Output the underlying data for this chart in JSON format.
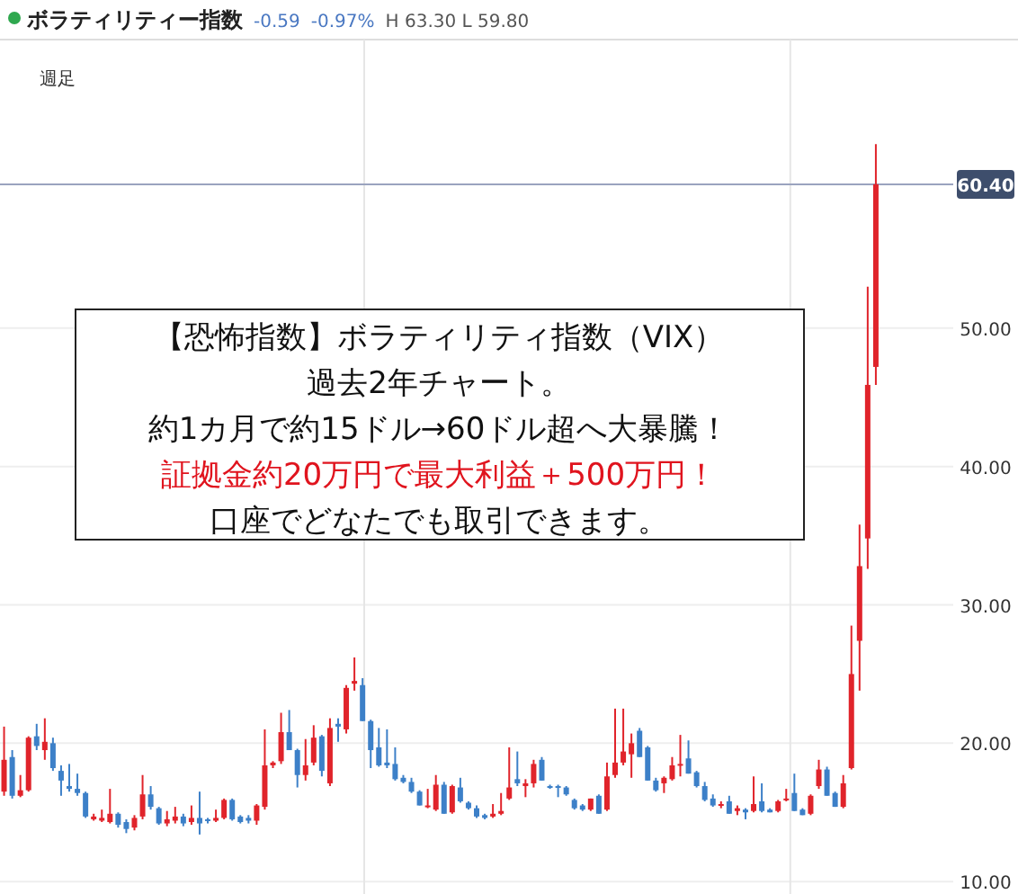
{
  "chart_data": {
    "type": "candlestick",
    "title": "ボラティリティー指数",
    "annotations": [
      "-0.59",
      "-0.97%",
      "H 63.30 L 59.80",
      "週足",
      "【恐怖指数】ボラティリティ指数（VIX）",
      "過去2年チャート。",
      "約1カ月で約15ドル→60ドル超へ大暴騰！",
      "証拠金約20万円で最大利益＋500万円！",
      "口座でどなたでも取引できます。"
    ],
    "categories": [
      null,
      null,
      null,
      null,
      null,
      null,
      null,
      null,
      null,
      null,
      null,
      null,
      null,
      null,
      null,
      null,
      null,
      null,
      null,
      null,
      null,
      null,
      null,
      null,
      null,
      null,
      null,
      null,
      null,
      null,
      null,
      null,
      null,
      null,
      null,
      null,
      null,
      null,
      null,
      null,
      null,
      null,
      null,
      null,
      null,
      null,
      null,
      null,
      null,
      null,
      null,
      null,
      null,
      null,
      null,
      null,
      null,
      null,
      null,
      null,
      null,
      null,
      null,
      null,
      null,
      null,
      null,
      null,
      null,
      null,
      null,
      null,
      null,
      null,
      null,
      null,
      null,
      null,
      null,
      null,
      null,
      null,
      null,
      null,
      null,
      null,
      null,
      null,
      null,
      null,
      null,
      null,
      null,
      null,
      null,
      null,
      null,
      null,
      null,
      null,
      null,
      null,
      null,
      null,
      null,
      null,
      null,
      null,
      null,
      null,
      null,
      null,
      null,
      null,
      null,
      null,
      null
    ],
    "ohlc": [
      [
        16.5,
        21.2,
        16.2,
        18.8
      ],
      [
        19.0,
        19.5,
        16.0,
        16.2
      ],
      [
        16.2,
        17.7,
        16.1,
        16.6
      ],
      [
        16.6,
        20.5,
        16.5,
        20.4
      ],
      [
        20.5,
        21.4,
        19.5,
        19.8
      ],
      [
        19.5,
        21.8,
        18.8,
        20.1
      ],
      [
        20.0,
        20.4,
        18.0,
        18.2
      ],
      [
        18.0,
        18.4,
        16.2,
        17.3
      ],
      [
        16.9,
        18.5,
        16.5,
        16.7
      ],
      [
        16.7,
        17.8,
        16.2,
        16.4
      ],
      [
        16.4,
        16.5,
        14.6,
        14.7
      ],
      [
        14.5,
        14.9,
        14.4,
        14.7
      ],
      [
        14.4,
        15.2,
        14.3,
        14.6
      ],
      [
        14.3,
        16.7,
        14.2,
        14.9
      ],
      [
        14.9,
        15.0,
        13.9,
        14.1
      ],
      [
        14.3,
        14.5,
        13.5,
        13.8
      ],
      [
        13.9,
        14.8,
        13.7,
        14.6
      ],
      [
        14.7,
        17.7,
        14.5,
        16.3
      ],
      [
        16.3,
        16.9,
        15.2,
        15.4
      ],
      [
        15.3,
        15.4,
        14.1,
        14.2
      ],
      [
        14.2,
        15.1,
        14.0,
        14.5
      ],
      [
        14.4,
        15.4,
        14.2,
        14.7
      ],
      [
        14.7,
        14.9,
        14.0,
        14.2
      ],
      [
        14.3,
        15.5,
        14.1,
        14.6
      ],
      [
        14.6,
        16.5,
        13.4,
        14.2
      ],
      [
        14.5,
        14.6,
        14.2,
        14.4
      ],
      [
        14.4,
        15.2,
        14.3,
        14.6
      ],
      [
        14.6,
        16.0,
        14.5,
        15.9
      ],
      [
        15.9,
        16.0,
        14.4,
        14.5
      ],
      [
        14.7,
        14.8,
        14.2,
        14.3
      ],
      [
        14.6,
        14.8,
        14.2,
        14.4
      ],
      [
        14.4,
        15.6,
        14.1,
        15.5
      ],
      [
        15.4,
        21.0,
        15.2,
        18.4
      ],
      [
        18.4,
        18.7,
        18.2,
        18.6
      ],
      [
        18.7,
        22.2,
        18.5,
        20.8
      ],
      [
        20.8,
        22.4,
        19.5,
        19.5
      ],
      [
        19.5,
        19.6,
        16.8,
        17.7
      ],
      [
        17.7,
        20.3,
        17.3,
        18.4
      ],
      [
        18.6,
        21.3,
        18.4,
        20.4
      ],
      [
        20.5,
        20.6,
        17.6,
        18.0
      ],
      [
        17.1,
        21.8,
        16.9,
        21.1
      ],
      [
        21.4,
        21.8,
        20.1,
        21.2
      ],
      [
        21.0,
        24.2,
        20.7,
        24.0
      ],
      [
        24.3,
        26.2,
        23.8,
        24.5
      ],
      [
        24.2,
        24.7,
        21.6,
        21.6
      ],
      [
        21.6,
        21.7,
        18.2,
        19.5
      ],
      [
        19.7,
        21.1,
        18.3,
        18.4
      ],
      [
        18.6,
        21.0,
        18.2,
        18.4
      ],
      [
        18.5,
        19.7,
        17.3,
        17.4
      ],
      [
        17.5,
        17.7,
        17.1,
        17.2
      ],
      [
        17.2,
        17.5,
        16.4,
        16.5
      ],
      [
        16.5,
        16.6,
        15.5,
        15.5
      ],
      [
        15.4,
        16.7,
        15.3,
        15.5
      ],
      [
        15.2,
        17.7,
        15.1,
        17.0
      ],
      [
        17.0,
        17.2,
        14.9,
        14.9
      ],
      [
        15.0,
        17.0,
        14.9,
        16.9
      ],
      [
        16.8,
        17.5,
        15.7,
        15.8
      ],
      [
        15.7,
        15.8,
        15.2,
        15.3
      ],
      [
        15.3,
        15.5,
        14.6,
        14.7
      ],
      [
        14.8,
        14.9,
        14.5,
        14.6
      ],
      [
        14.7,
        15.6,
        14.6,
        14.9
      ],
      [
        14.9,
        16.4,
        14.8,
        15.1
      ],
      [
        16.0,
        19.7,
        15.9,
        16.8
      ],
      [
        17.4,
        19.4,
        16.9,
        17.1
      ],
      [
        16.9,
        17.4,
        16.1,
        17.1
      ],
      [
        17.1,
        18.8,
        16.8,
        18.5
      ],
      [
        18.8,
        19.0,
        17.3,
        17.3
      ],
      [
        16.9,
        17.0,
        16.7,
        16.8
      ],
      [
        16.9,
        17.0,
        16.1,
        16.8
      ],
      [
        16.8,
        16.9,
        16.2,
        16.3
      ],
      [
        15.9,
        16.0,
        15.2,
        15.3
      ],
      [
        15.5,
        15.6,
        15.1,
        15.2
      ],
      [
        15.2,
        16.0,
        15.1,
        16.0
      ],
      [
        16.2,
        16.3,
        14.9,
        14.9
      ],
      [
        15.2,
        18.6,
        15.1,
        17.6
      ],
      [
        17.7,
        22.5,
        17.5,
        18.6
      ],
      [
        18.6,
        22.5,
        18.4,
        19.4
      ],
      [
        19.2,
        20.7,
        17.5,
        20.0
      ],
      [
        20.9,
        21.1,
        19.0,
        19.0
      ],
      [
        19.7,
        19.8,
        17.3,
        17.3
      ],
      [
        17.3,
        17.5,
        16.5,
        16.6
      ],
      [
        17.1,
        17.6,
        16.4,
        17.5
      ],
      [
        17.4,
        19.0,
        17.3,
        18.4
      ],
      [
        18.4,
        20.6,
        17.6,
        18.5
      ],
      [
        18.9,
        20.2,
        17.8,
        17.8
      ],
      [
        17.9,
        18.0,
        16.8,
        16.9
      ],
      [
        16.9,
        17.2,
        15.8,
        15.9
      ],
      [
        16.0,
        16.3,
        15.4,
        15.5
      ],
      [
        15.5,
        15.8,
        15.3,
        15.6
      ],
      [
        15.8,
        16.2,
        14.9,
        14.9
      ],
      [
        15.1,
        15.5,
        14.8,
        15.3
      ],
      [
        15.2,
        15.3,
        14.5,
        15.0
      ],
      [
        15.1,
        17.6,
        15.0,
        15.6
      ],
      [
        15.8,
        17.1,
        15.0,
        15.1
      ],
      [
        15.2,
        15.3,
        15.0,
        15.0
      ],
      [
        15.1,
        15.9,
        15.0,
        15.8
      ],
      [
        15.9,
        16.7,
        15.8,
        16.0
      ],
      [
        16.4,
        17.8,
        15.1,
        15.1
      ],
      [
        15.2,
        15.3,
        14.8,
        14.8
      ],
      [
        14.9,
        16.3,
        14.8,
        16.2
      ],
      [
        16.9,
        18.8,
        16.7,
        18.1
      ],
      [
        18.1,
        18.3,
        16.2,
        16.2
      ],
      [
        16.4,
        16.5,
        15.4,
        15.4
      ],
      [
        15.4,
        17.7,
        15.3,
        17.1
      ],
      [
        18.2,
        28.5,
        18.1,
        25.0
      ],
      [
        27.4,
        35.8,
        23.8,
        32.8
      ],
      [
        34.8,
        53.0,
        32.6,
        45.9
      ],
      [
        47.2,
        63.3,
        45.9,
        60.4
      ],
      null,
      null,
      null,
      null,
      null,
      null,
      null,
      null,
      null
    ],
    "ylim": [
      9.1,
      70.6
    ],
    "yticks": [
      {
        "value": 10,
        "label": "10.00"
      },
      {
        "value": 20,
        "label": "20.00"
      },
      {
        "value": 30,
        "label": "30.00"
      },
      {
        "value": 40,
        "label": "40.00"
      },
      {
        "value": 50,
        "label": "50.00"
      }
    ],
    "ref_lines": [
      {
        "axis": "y",
        "value": 60.4,
        "label": "60.40",
        "color": "#9aa3bf"
      }
    ],
    "grid": "y"
  }
}
